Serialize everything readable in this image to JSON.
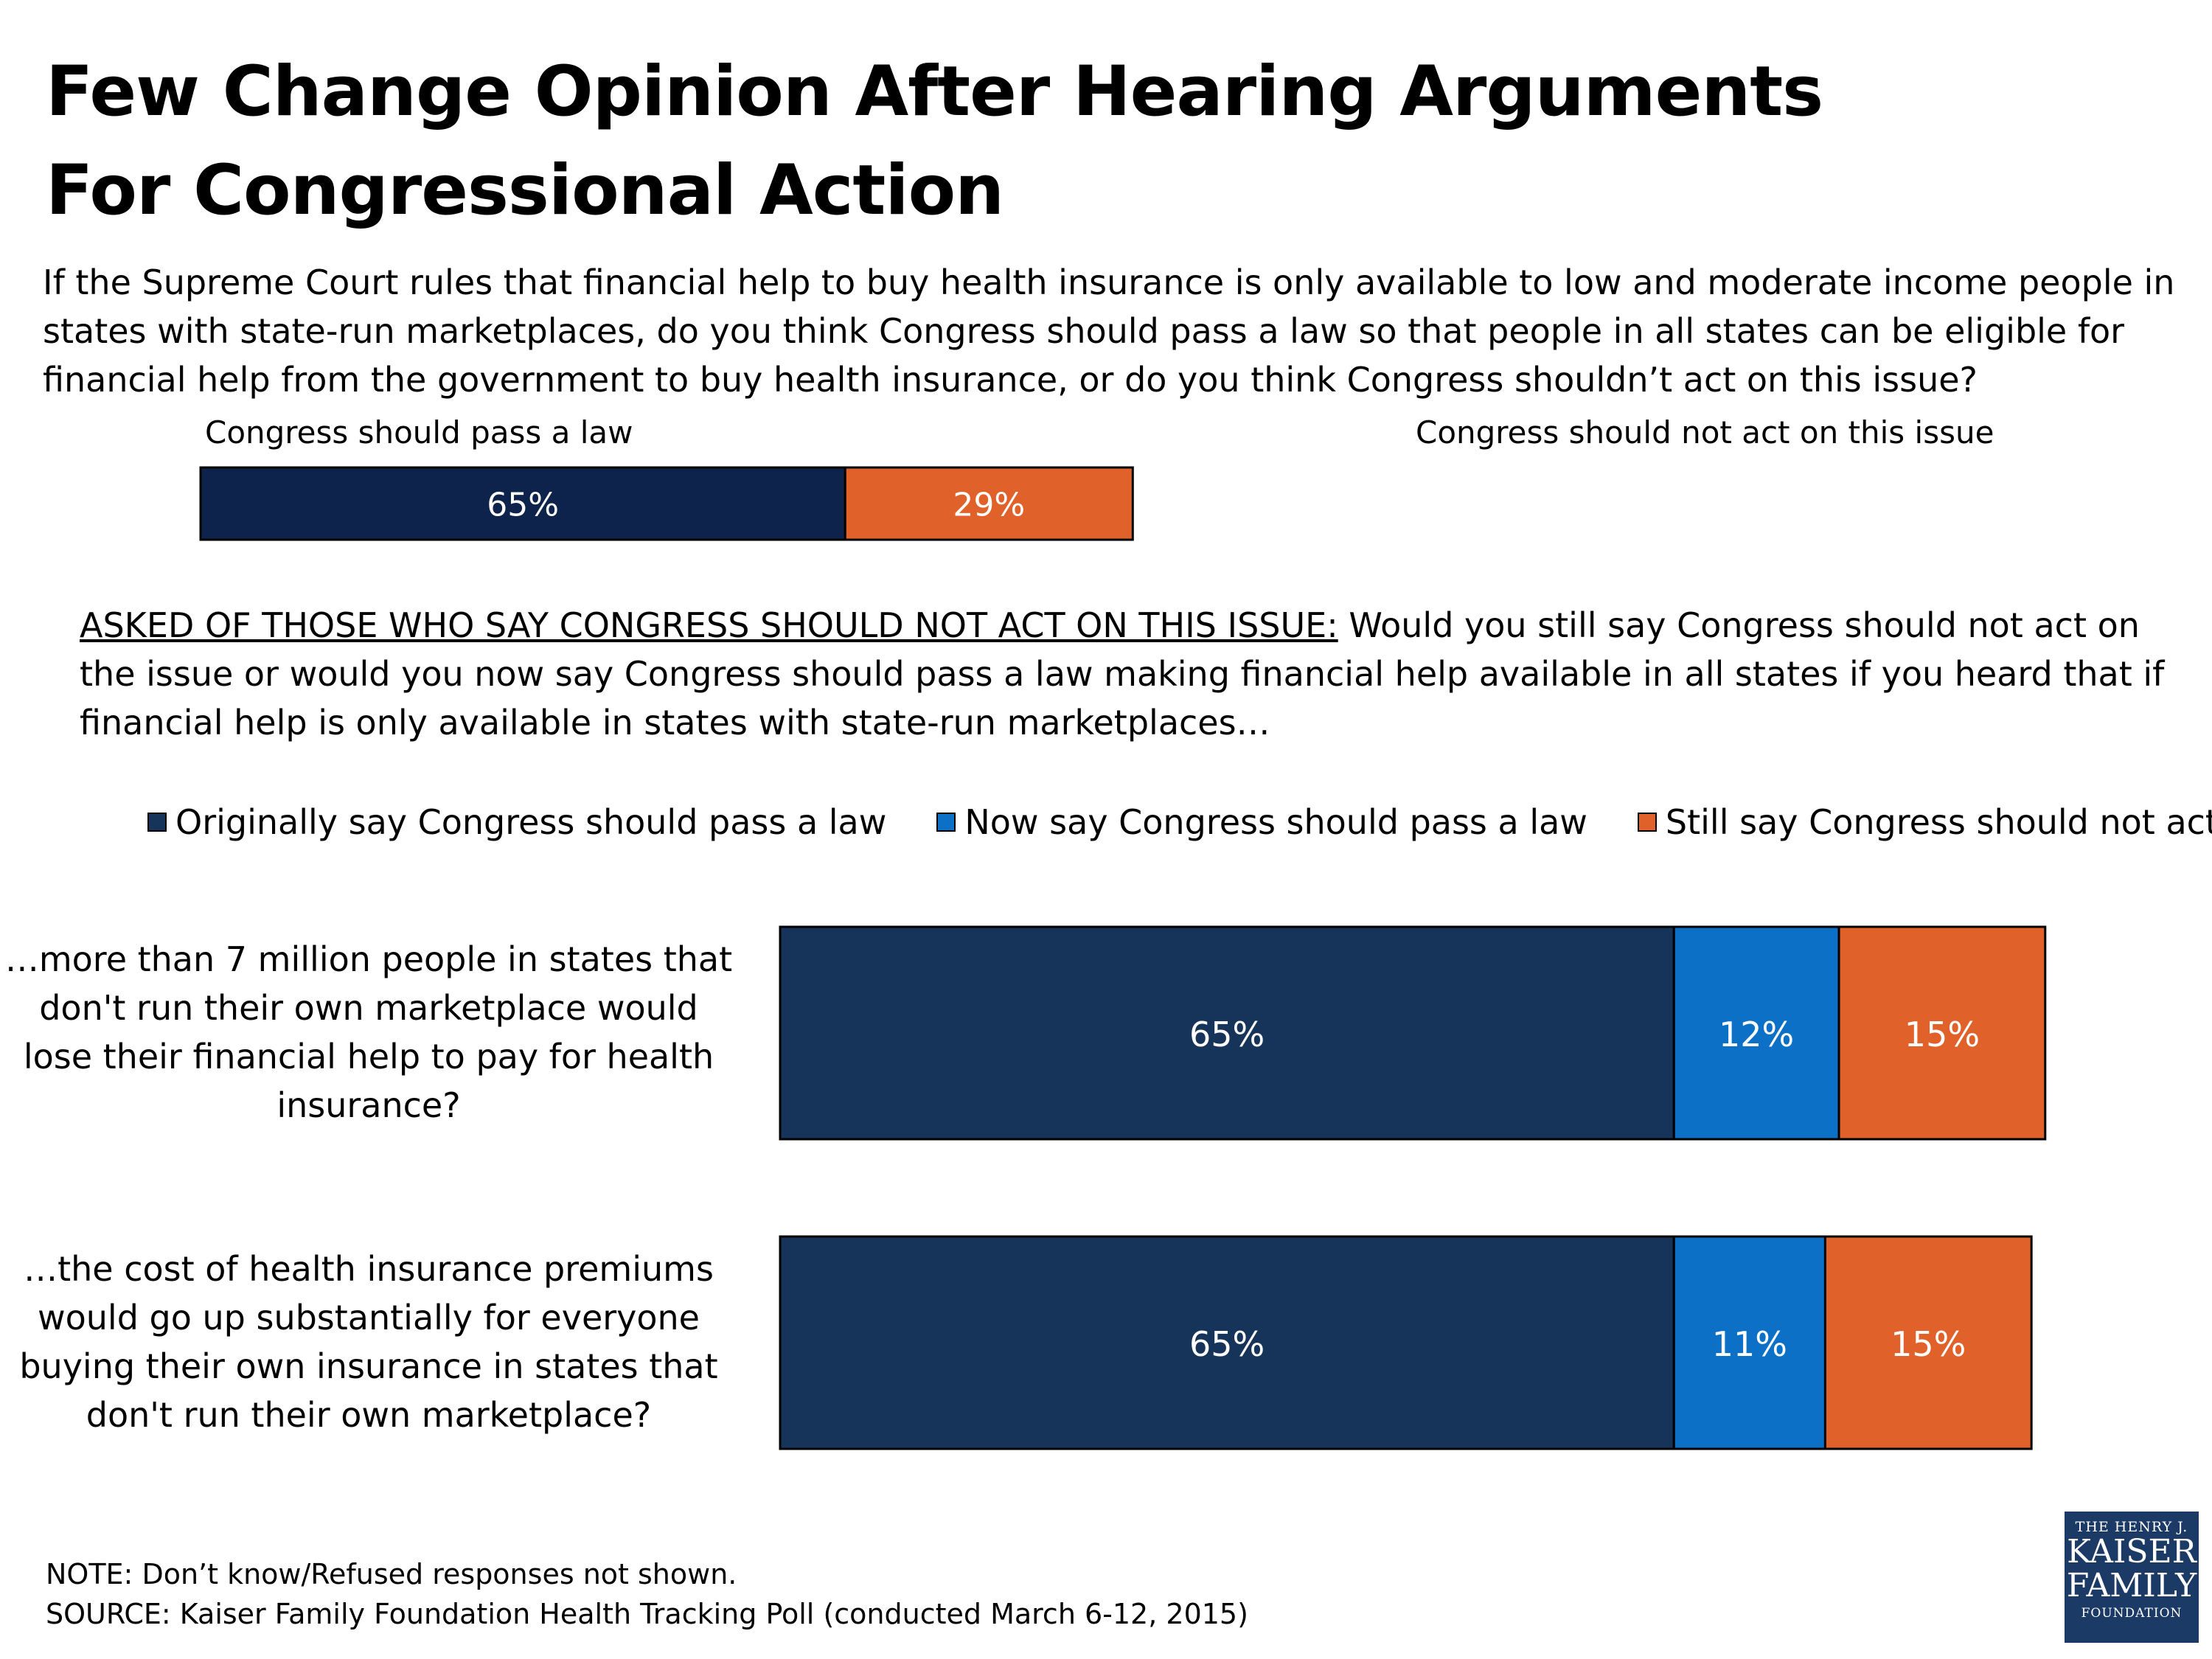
{
  "title": "Few Change Opinion After Hearing Arguments For Congressional Action",
  "question": "If the Supreme Court rules that financial help to buy health insurance is only available to low and moderate income people in states with state-run marketplaces, do you think Congress should pass a law so that people in all states can be eligible for financial help from the government to buy health insurance, or do you think Congress shouldn’t act on this issue?",
  "followup": {
    "lead": "ASKED OF THOSE WHO SAY CONGRESS SHOULD NOT ACT ON THIS ISSUE:",
    "text": " Would you still say Congress should not act on the issue or would you now say Congress should pass a law making financial help available in all states if you heard that if financial help is only available in states with state-run marketplaces…"
  },
  "notes": {
    "note": "NOTE: Don’t know/Refused responses not shown.",
    "source": "SOURCE: Kaiser Family Foundation Health Tracking Poll (conducted March 6-12, 2015)"
  },
  "logo": {
    "line1": "THE HENRY J.",
    "line2a": "KAISER",
    "line2b": "FAMILY",
    "line3": "FOUNDATION"
  },
  "colors": {
    "navy_top": "#0d234b",
    "navy": "#163459",
    "blue": "#0b70c6",
    "orange": "#e0622a"
  },
  "chart_data": [
    {
      "type": "bar",
      "orientation": "horizontal",
      "stacked": true,
      "series": [
        {
          "name": "Congress should pass a law",
          "values": [
            65
          ]
        },
        {
          "name": "Congress should not act on this issue",
          "values": [
            29
          ]
        }
      ],
      "data_labels": [
        "65%",
        "29%"
      ]
    },
    {
      "type": "bar",
      "orientation": "horizontal",
      "stacked": true,
      "categories": [
        "…more than 7 million people in states that don't run their own marketplace would lose their financial help to pay for health insurance?",
        "…the cost of health insurance premiums would go up substantially for everyone buying their own insurance in states that don't run their own marketplace?"
      ],
      "series": [
        {
          "name": "Originally say Congress should pass a law",
          "values": [
            65,
            65
          ],
          "labels": [
            "65%",
            "65%"
          ]
        },
        {
          "name": "Now say Congress should pass a law",
          "values": [
            12,
            11
          ],
          "labels": [
            "12%",
            "11%"
          ]
        },
        {
          "name": "Still say Congress should not act",
          "values": [
            15,
            15
          ],
          "labels": [
            "15%",
            "15%"
          ]
        }
      ],
      "legend": "top"
    }
  ]
}
